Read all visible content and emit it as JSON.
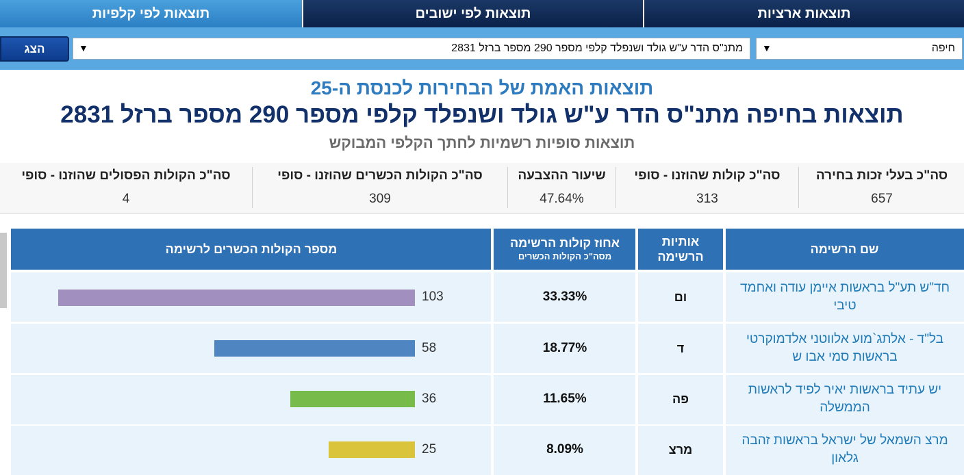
{
  "tabs": [
    {
      "label": "תוצאות ארציות"
    },
    {
      "label": "תוצאות לפי ישובים"
    },
    {
      "label": "תוצאות לפי קלפיות"
    }
  ],
  "filters": {
    "city": "חיפה",
    "ballot": "מתנ\"ס הדר ע\"ש גולד ושנפלד קלפי מספר 290 מספר ברזל 2831",
    "show_label": "הצג"
  },
  "titles": {
    "main": "תוצאות האמת של הבחירות לכנסת ה-25",
    "location": "תוצאות בחיפה מתנ\"ס הדר ע\"ש גולד ושנפלד קלפי מספר 290 מספר ברזל 2831",
    "subtitle": "תוצאות סופיות רשמיות לחתך הקלפי המבוקש"
  },
  "summary": [
    {
      "label": "סה\"כ בעלי זכות בחירה",
      "value": "657"
    },
    {
      "label": "סה\"כ קולות שהוזנו - סופי",
      "value": "313"
    },
    {
      "label": "שיעור ההצבעה",
      "value": "47.64%"
    },
    {
      "label": "סה\"כ הקולות הכשרים שהוזנו - סופי",
      "value": "309"
    },
    {
      "label": "סה\"כ הקולות הפסולים שהוזנו - סופי",
      "value": "4"
    }
  ],
  "table": {
    "headers": {
      "name": "שם הרשימה",
      "letters": "אותיות הרשימה",
      "pct": "אחוז קולות הרשימה",
      "pct_sub": "מסה\"כ הקולות הכשרים",
      "votes": "מספר הקולות הכשרים לרשימה"
    },
    "rows": [
      {
        "name": "חד\"ש תע\"ל בראשות איימן עודה ואחמד טיבי",
        "letters": "ום",
        "pct": "33.33%",
        "votes": "103",
        "votes_num": 103,
        "color": "#a08fbf"
      },
      {
        "name": "בל\"ד - אלתג`מוע אלווטני אלדמוקרטי בראשות סמי אבו ש",
        "letters": "ד",
        "pct": "18.77%",
        "votes": "58",
        "votes_num": 58,
        "color": "#4f86c2"
      },
      {
        "name": "יש עתיד בראשות יאיר לפיד לראשות הממשלה",
        "letters": "פה",
        "pct": "11.65%",
        "votes": "36",
        "votes_num": 36,
        "color": "#77bb4a"
      },
      {
        "name": "מרצ השמאל של ישראל בראשות זהבה גלאון",
        "letters": "מרצ",
        "pct": "8.09%",
        "votes": "25",
        "votes_num": 25,
        "color": "#d9c43c"
      }
    ]
  }
}
